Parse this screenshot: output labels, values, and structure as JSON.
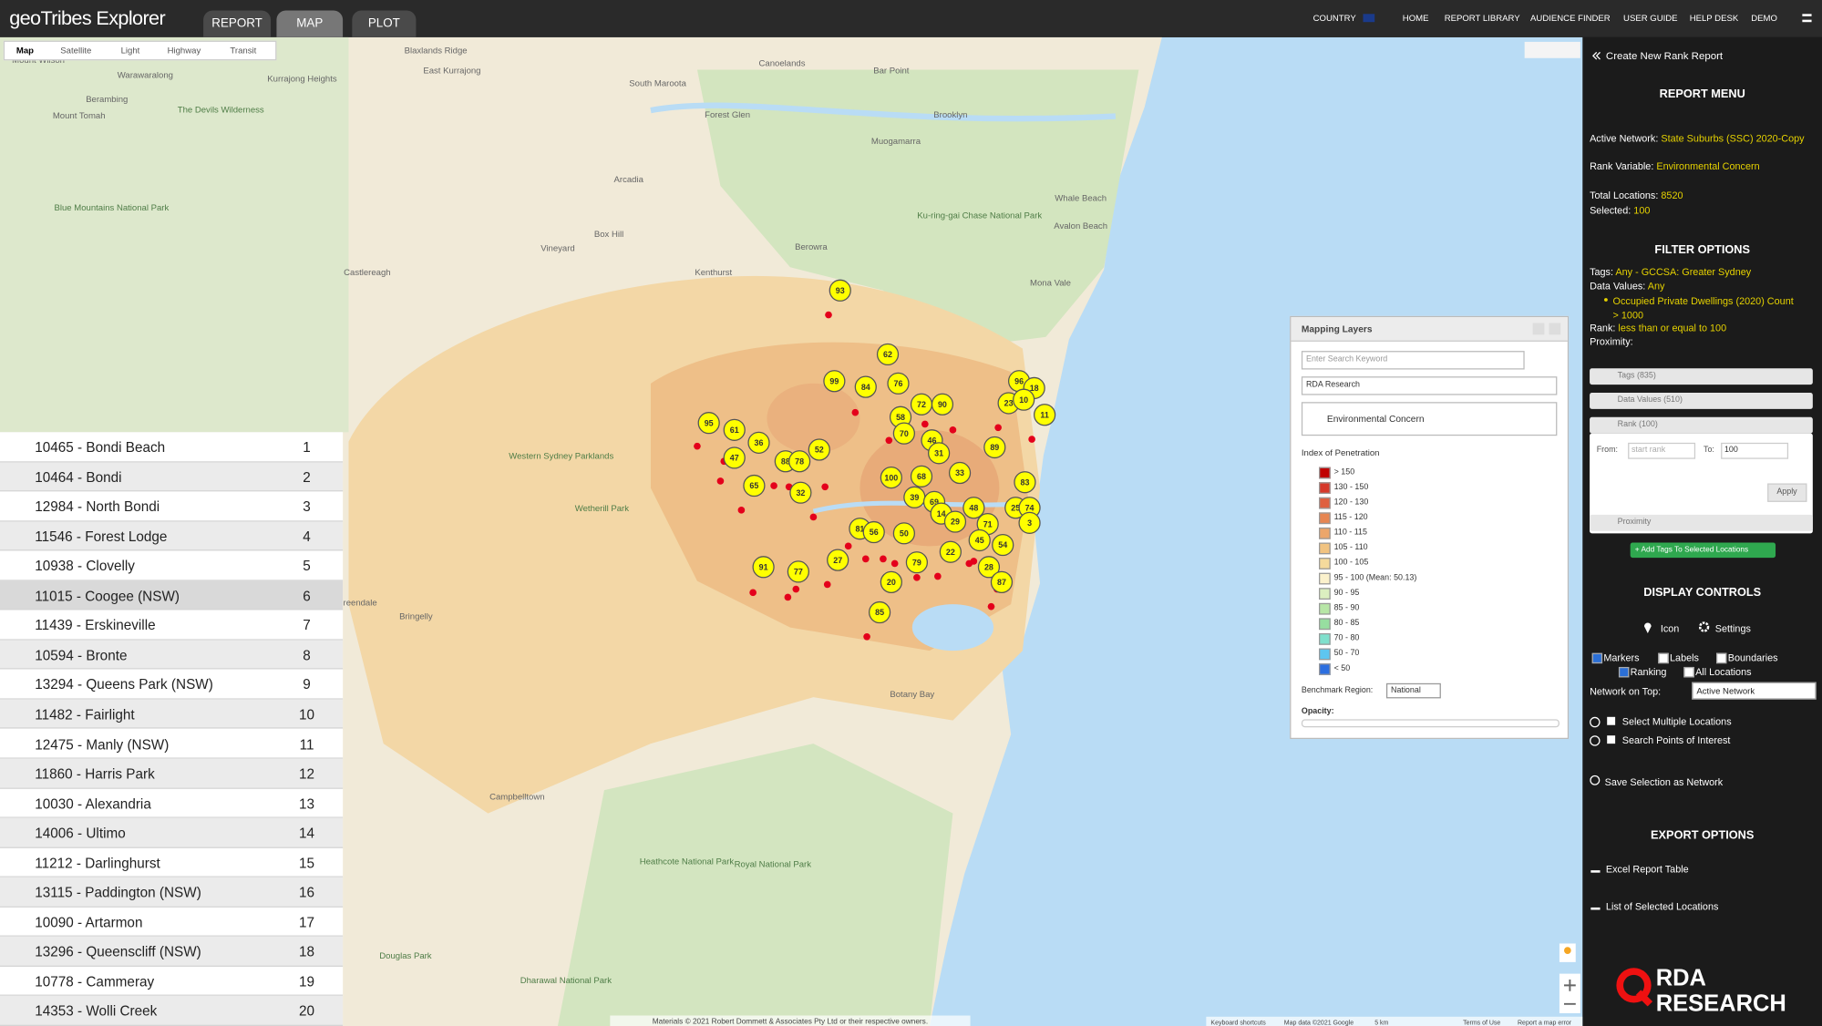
{
  "header": {
    "logo": "geoTribes Explorer",
    "tabs": [
      "REPORT",
      "MAP",
      "PLOT"
    ],
    "nav": [
      "COUNTRY",
      "HOME",
      "REPORT LIBRARY",
      "AUDIENCE FINDER",
      "USER GUIDE",
      "HELP DESK",
      "DEMO"
    ]
  },
  "map": {
    "types": [
      "Map",
      "Satellite",
      "Light",
      "Highway",
      "Transit"
    ],
    "labels": [
      "Mount Wilson",
      "Blaxlands Ridge",
      "East Kurrajong",
      "Canoelands",
      "Bar Point",
      "Warawaralong",
      "Kurrajong Heights",
      "South Maroota",
      "Berambing",
      "Mount Tomah",
      "The Devils Wilderness",
      "Forest Glen",
      "Brooklyn",
      "Muogamarra",
      "Arcadia",
      "Blue Mountains National Park",
      "Ku-ring-gai Chase National Park",
      "Whale Beach",
      "Avalon Beach",
      "Box Hill",
      "Vineyard",
      "Berowra",
      "Castlereagh",
      "Kenthurst",
      "Mona Vale",
      "Western Sydney Parklands",
      "Wetherill Park",
      "Greendale",
      "Bringelly",
      "Campbelltown",
      "Heathcote National Park",
      "Royal National Park",
      "Douglas Park",
      "Dharawal National Park",
      "Botany Bay"
    ],
    "markers": [
      93,
      62,
      99,
      84,
      76,
      58,
      72,
      90,
      95,
      61,
      36,
      47,
      52,
      88,
      78,
      65,
      32,
      100,
      68,
      70,
      46,
      31,
      89,
      83,
      96,
      18,
      23,
      10,
      11,
      39,
      69,
      48,
      14,
      25,
      74,
      3,
      29,
      71,
      81,
      56,
      50,
      45,
      54,
      22,
      91,
      77,
      27,
      79,
      20,
      28,
      87,
      85,
      33
    ],
    "footer": [
      "Materials © 2021 Robert Dommett & Associates Pty Ltd or their respective owners.",
      "Keyboard shortcuts",
      "Map data ©2021 Google",
      "5 km",
      "Terms of Use",
      "Report a map error"
    ]
  },
  "locations": [
    {
      "name": "10465 - Bondi Beach",
      "rank": 1
    },
    {
      "name": "10464 - Bondi",
      "rank": 2
    },
    {
      "name": "12984 - North Bondi",
      "rank": 3
    },
    {
      "name": "11546 - Forest Lodge",
      "rank": 4
    },
    {
      "name": "10938 - Clovelly",
      "rank": 5
    },
    {
      "name": "11015 - Coogee (NSW)",
      "rank": 6
    },
    {
      "name": "11439 - Erskineville",
      "rank": 7
    },
    {
      "name": "10594 - Bronte",
      "rank": 8
    },
    {
      "name": "13294 - Queens Park (NSW)",
      "rank": 9
    },
    {
      "name": "11482 - Fairlight",
      "rank": 10
    },
    {
      "name": "12475 - Manly (NSW)",
      "rank": 11
    },
    {
      "name": "11860 - Harris Park",
      "rank": 12
    },
    {
      "name": "10030 - Alexandria",
      "rank": 13
    },
    {
      "name": "14006 - Ultimo",
      "rank": 14
    },
    {
      "name": "11212 - Darlinghurst",
      "rank": 15
    },
    {
      "name": "13115 - Paddington (NSW)",
      "rank": 16
    },
    {
      "name": "10090 - Artarmon",
      "rank": 17
    },
    {
      "name": "13296 - Queenscliff (NSW)",
      "rank": 18
    },
    {
      "name": "10778 - Cammeray",
      "rank": 19
    },
    {
      "name": "14353 - Wolli Creek",
      "rank": 20
    }
  ],
  "layers": {
    "title": "Mapping Layers",
    "search_placeholder": "Enter Search Keyword",
    "source": "RDA Research",
    "variable": "Environmental Concern",
    "legend_title": "Index of Penetration",
    "legend": [
      {
        "label": "> 150",
        "color": "#c00000"
      },
      {
        "label": "130 - 150",
        "color": "#d6392b"
      },
      {
        "label": "120 - 130",
        "color": "#df6040"
      },
      {
        "label": "115 - 120",
        "color": "#e78652"
      },
      {
        "label": "110 - 115",
        "color": "#eca66a"
      },
      {
        "label": "105 - 110",
        "color": "#f1c381"
      },
      {
        "label": "100 - 105",
        "color": "#f5da9c"
      },
      {
        "label": "95 - 100 (Mean: 50.13)",
        "color": "#fbf1cc"
      },
      {
        "label": "90 - 95",
        "color": "#dcefc0"
      },
      {
        "label": "85 - 90",
        "color": "#b7e6a6"
      },
      {
        "label": "80 - 85",
        "color": "#97dea0"
      },
      {
        "label": "70 - 80",
        "color": "#7fe0cc"
      },
      {
        "label": "50 - 70",
        "color": "#5ec6f0"
      },
      {
        "label": "< 50",
        "color": "#2c6fe0"
      }
    ],
    "benchmark_label": "Benchmark Region:",
    "benchmark": "National",
    "opacity_label": "Opacity:"
  },
  "sidebar": {
    "create": "Create New Rank Report",
    "menu_title": "REPORT MENU",
    "active_network_label": "Active Network:",
    "active_network": "State Suburbs (SSC) 2020-Copy",
    "rank_variable_label": "Rank Variable:",
    "rank_variable": "Environmental Concern",
    "total_label": "Total Locations:",
    "total": 8520,
    "selected_label": "Selected:",
    "selected": 100,
    "filter_title": "FILTER OPTIONS",
    "tags_label": "Tags:",
    "tags": "Any - GCCSA: Greater Sydney",
    "data_values_label": "Data Values:",
    "data_values": "Any",
    "data_values_item": "Occupied Private Dwellings (2020) Count > 1000",
    "rank_label": "Rank:",
    "rank": "less than or equal to 100",
    "proximity_label": "Proximity:",
    "accordions": [
      "Tags (835)",
      "Data Values (510)",
      "Rank (100)",
      "Proximity"
    ],
    "from_label": "From:",
    "from_placeholder": "start rank",
    "to_label": "To:",
    "to_value": 100,
    "apply": "Apply",
    "add_tags": "+ Add Tags To Selected Locations",
    "display_title": "DISPLAY CONTROLS",
    "icon": "Icon",
    "settings": "Settings",
    "checkboxes": [
      {
        "label": "Markers",
        "checked": true
      },
      {
        "label": "Labels",
        "checked": false
      },
      {
        "label": "Boundaries",
        "checked": false
      },
      {
        "label": "Ranking",
        "checked": true
      },
      {
        "label": "All Locations",
        "checked": false
      }
    ],
    "network_label": "Network on Top:",
    "network": "Active Network",
    "options": [
      "Select Multiple Locations",
      "Search Points of Interest"
    ],
    "save": "Save Selection as Network",
    "export_title": "EXPORT OPTIONS",
    "exports": [
      "Excel Report Table",
      "List of Selected Locations"
    ],
    "logo": [
      "RDA",
      "RESEARCH"
    ]
  }
}
